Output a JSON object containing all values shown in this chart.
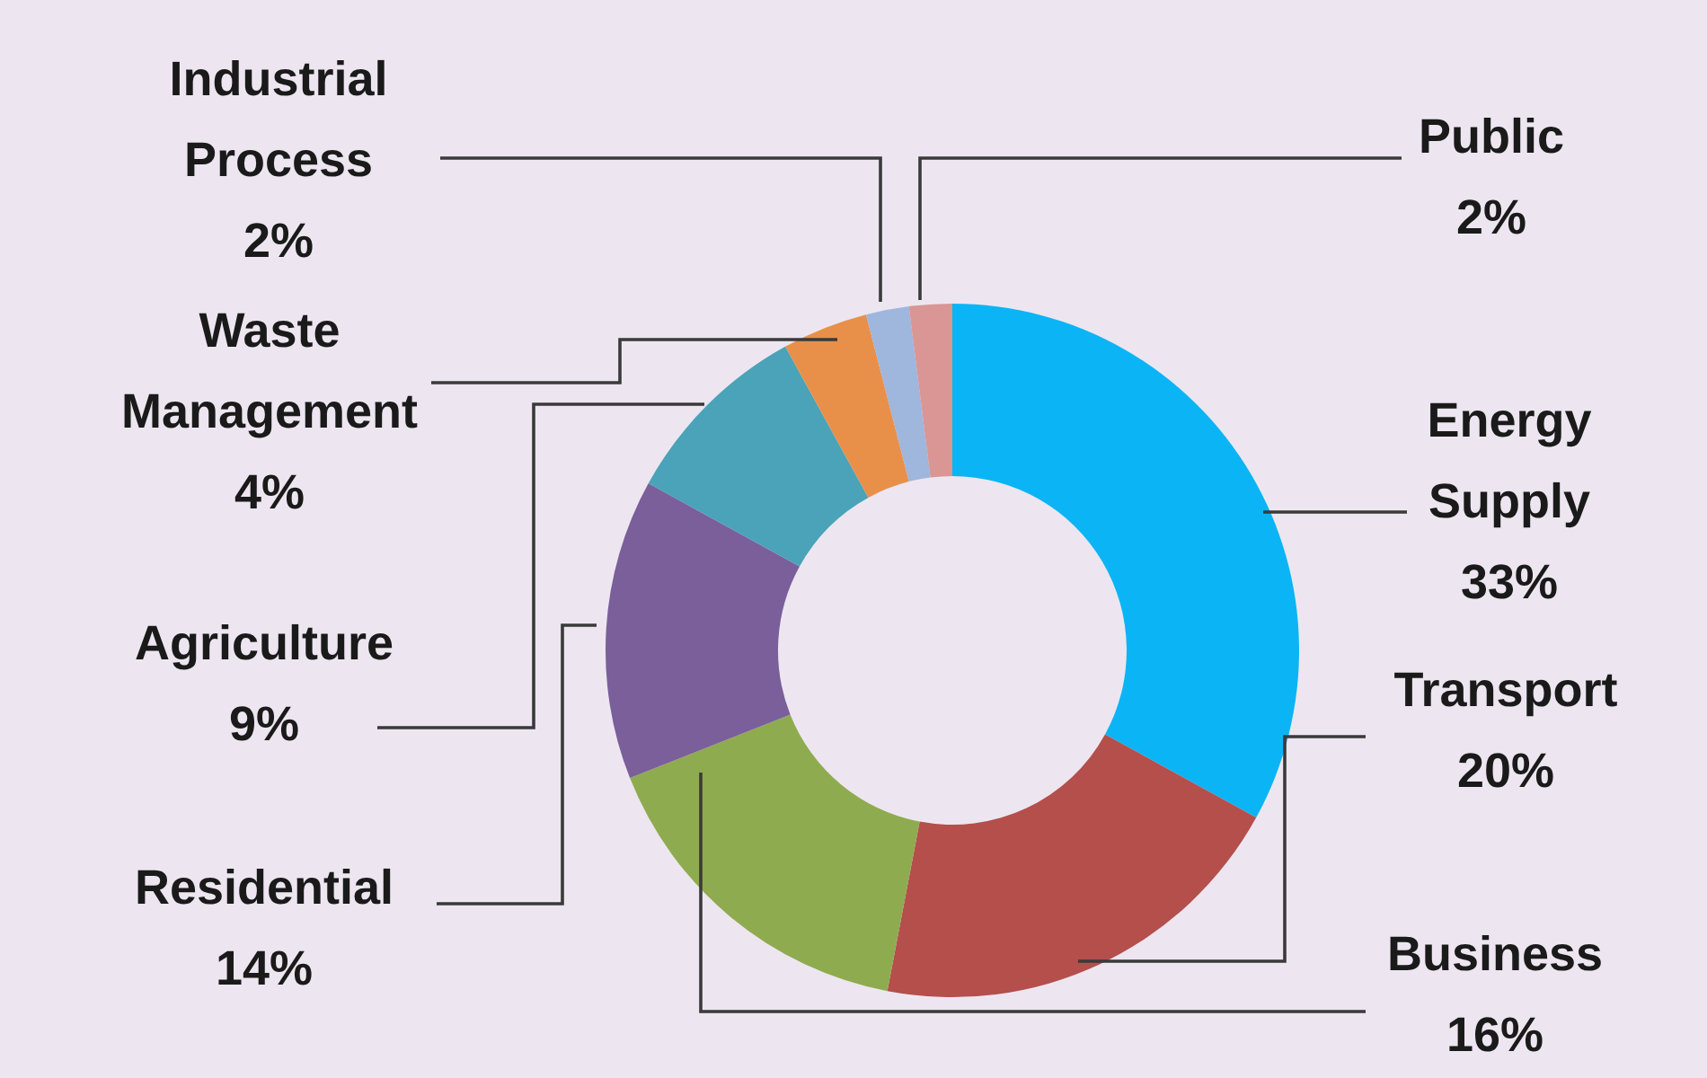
{
  "chart_data": {
    "type": "donut",
    "categories": [
      "Energy Supply",
      "Transport",
      "Business",
      "Residential",
      "Agriculture",
      "Waste Management",
      "Industrial Process",
      "Public"
    ],
    "values": [
      33,
      20,
      16,
      14,
      9,
      4,
      2,
      2
    ],
    "colors": [
      "#0bb5f5",
      "#b44f4c",
      "#8fab4f",
      "#7a5f9a",
      "#4aa3b8",
      "#e8904a",
      "#9fb6dd",
      "#d99694"
    ],
    "value_labels": [
      "33%",
      "20%",
      "16%",
      "14%",
      "9%",
      "4%",
      "2%",
      "2%"
    ]
  }
}
